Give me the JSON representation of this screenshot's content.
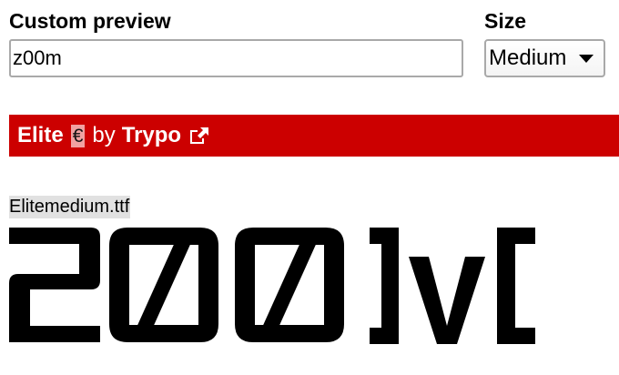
{
  "labels": {
    "custom_preview": "Custom preview",
    "size": "Size"
  },
  "preview_input": {
    "value": "z00m"
  },
  "size_select": {
    "selected": "Medium"
  },
  "font_header": {
    "font_name": "Elite",
    "price_badge": "€",
    "by_text": "by",
    "designer": "Trypo",
    "link_icon": "external-link-icon"
  },
  "sample": {
    "file_name": "Elitemedium.ttf"
  },
  "colors": {
    "bar_background": "#cc0000",
    "badge_background": "#f1a1a1",
    "file_label_background": "#e1e1e1",
    "input_border": "#a9a9a9"
  }
}
